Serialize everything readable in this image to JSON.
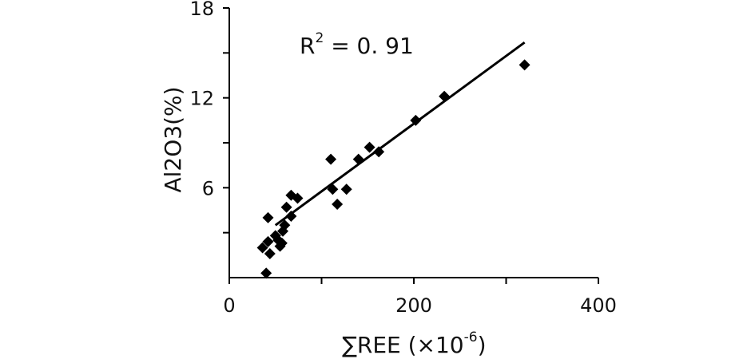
{
  "chart_data": {
    "type": "scatter",
    "title": "",
    "xlabel": "∑REE (×10",
    "xlabel_exponent": "-6",
    "xlabel_close": ")",
    "ylabel": "Al2O3(%)",
    "xlim": [
      0,
      400
    ],
    "ylim": [
      0,
      18
    ],
    "x_ticks": [
      0,
      200,
      400
    ],
    "y_ticks": [
      6,
      12,
      18
    ],
    "grid": false,
    "legend": "none",
    "annotation": {
      "base": "R",
      "exponent": "2",
      "rest": " = 0. 91"
    },
    "marker": "diamond",
    "color": "#000000",
    "points": [
      {
        "x": 36,
        "y": 2.0
      },
      {
        "x": 40,
        "y": 0.3
      },
      {
        "x": 42,
        "y": 2.4
      },
      {
        "x": 44,
        "y": 1.6
      },
      {
        "x": 42,
        "y": 4.0
      },
      {
        "x": 50,
        "y": 2.8
      },
      {
        "x": 53,
        "y": 2.5
      },
      {
        "x": 55,
        "y": 2.1
      },
      {
        "x": 57,
        "y": 2.3
      },
      {
        "x": 58,
        "y": 3.1
      },
      {
        "x": 60,
        "y": 3.5
      },
      {
        "x": 62,
        "y": 4.7
      },
      {
        "x": 67,
        "y": 4.1
      },
      {
        "x": 67,
        "y": 5.5
      },
      {
        "x": 74,
        "y": 5.3
      },
      {
        "x": 110,
        "y": 7.9
      },
      {
        "x": 112,
        "y": 5.9
      },
      {
        "x": 117,
        "y": 4.9
      },
      {
        "x": 127,
        "y": 5.9
      },
      {
        "x": 140,
        "y": 7.9
      },
      {
        "x": 152,
        "y": 8.7
      },
      {
        "x": 162,
        "y": 8.4
      },
      {
        "x": 202,
        "y": 10.5
      },
      {
        "x": 233,
        "y": 12.1
      },
      {
        "x": 320,
        "y": 14.2
      }
    ],
    "trendline": {
      "x": [
        50,
        320
      ],
      "y": [
        3.5,
        15.7
      ]
    }
  }
}
